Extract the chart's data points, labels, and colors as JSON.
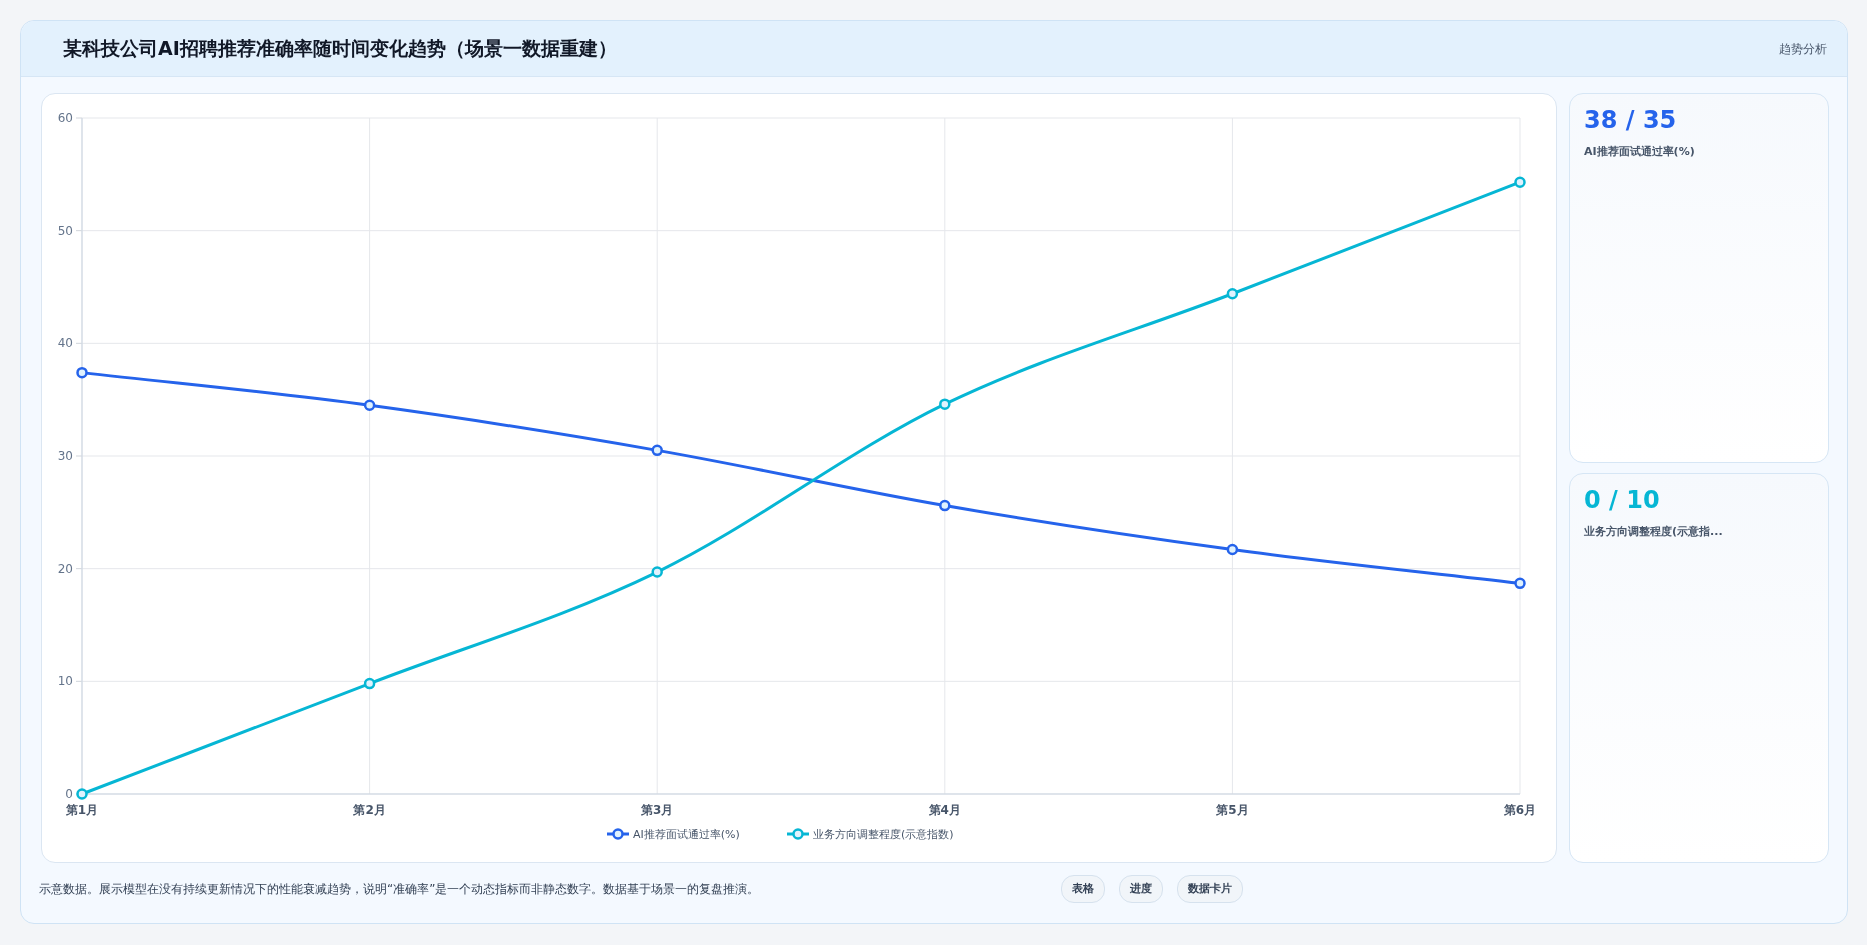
{
  "chart_data": [
    {
      "type": "line",
      "title": "某科技公司AI招聘推荐准确率随时间变化趋势（场景一数据重建）",
      "categories": [
        "第1月",
        "第2月",
        "第3月",
        "第4月",
        "第5月",
        "第6月"
      ],
      "series": [
        {
          "name": "AI推荐面试通过率(%)",
          "color": "#2563eb",
          "values": [
            37.4,
            34.5,
            30.5,
            25.6,
            21.7,
            18.7
          ]
        },
        {
          "name": "业务方向调整程度(示意指数)",
          "color": "#06b6d4",
          "values": [
            0,
            9.8,
            19.7,
            34.6,
            44.4,
            54.3
          ]
        }
      ],
      "ylim": [
        0,
        60
      ],
      "yticks": [
        0,
        10,
        20,
        30,
        40,
        50,
        60
      ],
      "grid": true,
      "legend": "bottom",
      "marker": "circle",
      "line_style": "solid",
      "annotations": [
        "趋势分析",
        "示意数据。展示模型在没有持续更新情况下的性能衰减趋势，说明“准确率”是一个动态指标而非静态数字。数据基于场景一的复盘推演。",
        "表格",
        "进度",
        "数据卡片"
      ]
    },
    {
      "type": "other",
      "title": "38 / 35",
      "subtitle": "AI推荐面试通过率(%)",
      "color": "#2563eb"
    },
    {
      "type": "other",
      "title": "0 / 10",
      "subtitle": "业务方向调整程度(示意指...",
      "color": "#06b6d4"
    }
  ]
}
